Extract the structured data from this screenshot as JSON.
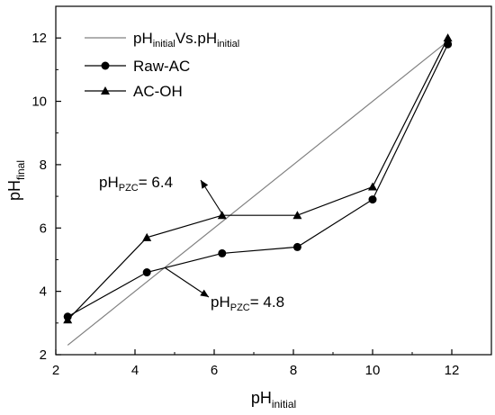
{
  "chart_data": {
    "type": "line",
    "xlabel": {
      "main": "pH",
      "sub": "initial"
    },
    "ylabel": {
      "main": "pH",
      "sub": "final"
    },
    "xlim": [
      2,
      13
    ],
    "ylim": [
      2,
      13
    ],
    "xticks": [
      2,
      4,
      6,
      8,
      10,
      12
    ],
    "yticks": [
      2,
      4,
      6,
      8,
      10,
      12
    ],
    "grid": false,
    "legend_position": "top-left",
    "series": [
      {
        "name": {
          "p1": "pH",
          "s1": "initial",
          "p2": "Vs.pH",
          "s2": "initial"
        },
        "marker": "none",
        "color": "#808080",
        "x": [
          2.3,
          11.9
        ],
        "y": [
          2.3,
          11.9
        ]
      },
      {
        "name": "Raw-AC",
        "marker": "circle",
        "color": "#000000",
        "x": [
          2.3,
          4.3,
          6.2,
          8.1,
          10.0,
          11.9
        ],
        "y": [
          3.2,
          4.6,
          5.2,
          5.4,
          6.9,
          11.8
        ]
      },
      {
        "name": "AC-OH",
        "marker": "triangle",
        "color": "#000000",
        "x": [
          2.3,
          4.3,
          6.2,
          8.1,
          10.0,
          11.9
        ],
        "y": [
          3.1,
          5.7,
          6.4,
          6.4,
          7.3,
          12.0
        ]
      }
    ],
    "annotations": [
      {
        "main": "pH",
        "sub": "PZC",
        "suffix": "= 6.4",
        "value": 6.4
      },
      {
        "main": "pH",
        "sub": "PZC",
        "suffix": "= 4.8",
        "value": 4.8
      }
    ]
  }
}
